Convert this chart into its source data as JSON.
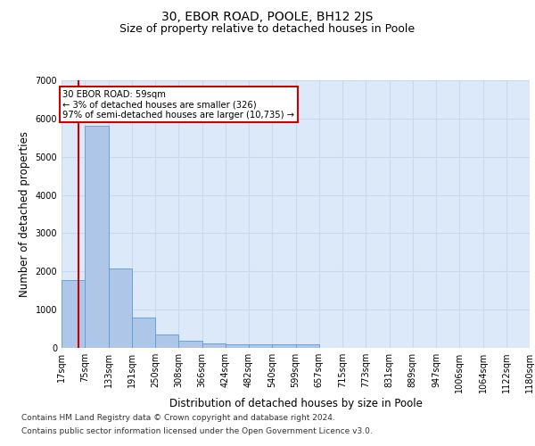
{
  "title": "30, EBOR ROAD, POOLE, BH12 2JS",
  "subtitle": "Size of property relative to detached houses in Poole",
  "xlabel": "Distribution of detached houses by size in Poole",
  "ylabel": "Number of detached properties",
  "bar_color": "#aec6e8",
  "bar_edge_color": "#5b9bd5",
  "grid_color": "#c8d8ee",
  "background_color": "#dce9f8",
  "bins": [
    "17sqm",
    "75sqm",
    "133sqm",
    "191sqm",
    "250sqm",
    "308sqm",
    "366sqm",
    "424sqm",
    "482sqm",
    "540sqm",
    "599sqm",
    "657sqm",
    "715sqm",
    "773sqm",
    "831sqm",
    "889sqm",
    "947sqm",
    "1006sqm",
    "1064sqm",
    "1122sqm",
    "1180sqm"
  ],
  "values": [
    1780,
    5800,
    2080,
    800,
    340,
    195,
    120,
    105,
    100,
    100,
    95,
    0,
    0,
    0,
    0,
    0,
    0,
    0,
    0,
    0
  ],
  "ylim": [
    0,
    7000
  ],
  "yticks": [
    0,
    1000,
    2000,
    3000,
    4000,
    5000,
    6000,
    7000
  ],
  "annotation_text": "30 EBOR ROAD: 59sqm\n← 3% of detached houses are smaller (326)\n97% of semi-detached houses are larger (10,735) →",
  "annotation_box_color": "#ffffff",
  "annotation_border_color": "#cc0000",
  "property_line_color": "#cc0000",
  "footer_line1": "Contains HM Land Registry data © Crown copyright and database right 2024.",
  "footer_line2": "Contains public sector information licensed under the Open Government Licence v3.0.",
  "title_fontsize": 10,
  "subtitle_fontsize": 9,
  "label_fontsize": 8.5,
  "tick_fontsize": 7,
  "footer_fontsize": 6.5
}
